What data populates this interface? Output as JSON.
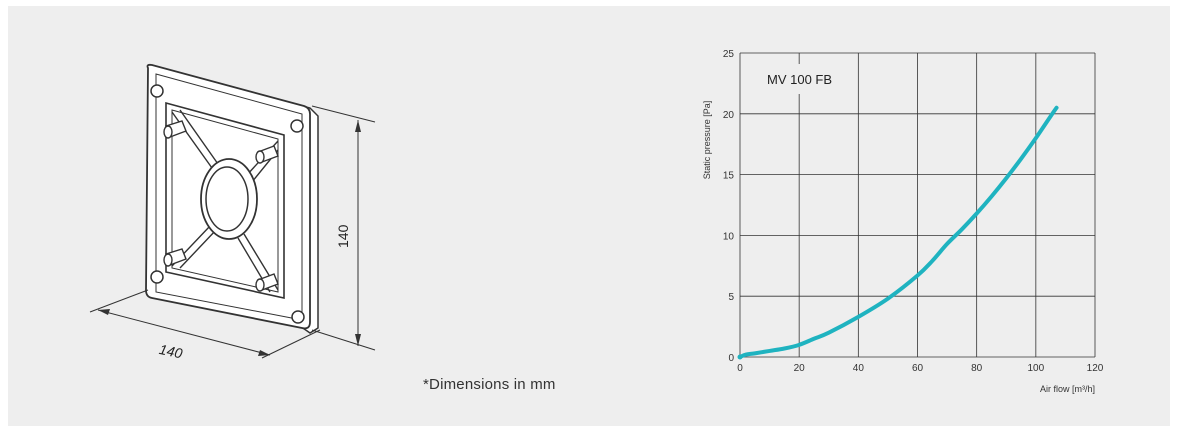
{
  "drawing": {
    "dim_width": "140",
    "dim_height": "140",
    "note": "*Dimensions in mm"
  },
  "chart_data": {
    "type": "line",
    "xlabel": "Air flow [m³/h]",
    "ylabel": "Static pressure [Pa]",
    "xlim": [
      0,
      120
    ],
    "ylim": [
      0,
      25
    ],
    "xticks": [
      0,
      20,
      40,
      60,
      80,
      100,
      120
    ],
    "yticks": [
      0,
      5,
      10,
      15,
      20,
      25
    ],
    "grid": true,
    "annotation": "MV 100 FB",
    "series": [
      {
        "color": "#1fb3c0",
        "x": [
          0,
          2,
          5,
          10,
          15,
          20,
          25,
          30,
          40,
          50,
          60,
          65,
          70,
          75,
          80,
          85,
          90,
          95,
          100,
          105,
          107
        ],
        "y": [
          0,
          0.2,
          0.3,
          0.5,
          0.7,
          1.0,
          1.5,
          2.0,
          3.3,
          4.8,
          6.7,
          7.9,
          9.3,
          10.5,
          11.8,
          13.2,
          14.7,
          16.3,
          18.0,
          19.8,
          20.5
        ]
      }
    ]
  }
}
